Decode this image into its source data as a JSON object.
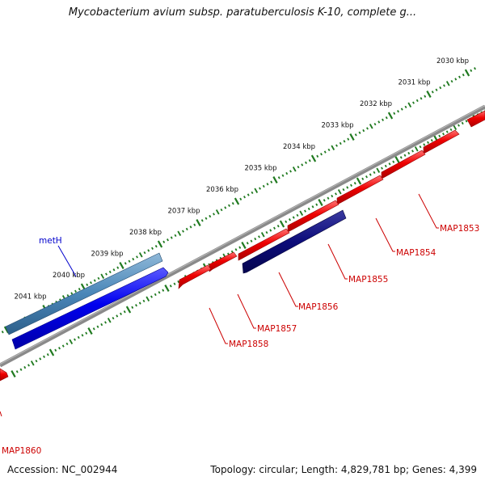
{
  "map_title": "Mycobacterium avium subsp. paratuberculosis K-10, complete g...",
  "accession": "Accession: NC_002944",
  "summary": "Topology: circular; Length: 4,829,781 bp; Genes: 4,399",
  "ruler_labels": [
    {
      "label": "2030 kbp",
      "kbp": 2030
    },
    {
      "label": "2031 kbp",
      "kbp": 2031
    },
    {
      "label": "2032 kbp",
      "kbp": 2032
    },
    {
      "label": "2033 kbp",
      "kbp": 2033
    },
    {
      "label": "2034 kbp",
      "kbp": 2034
    },
    {
      "label": "2035 kbp",
      "kbp": 2035
    },
    {
      "label": "2036 kbp",
      "kbp": 2036
    },
    {
      "label": "2037 kbp",
      "kbp": 2037
    },
    {
      "label": "2038 kbp",
      "kbp": 2038
    },
    {
      "label": "2039 kbp",
      "kbp": 2039
    },
    {
      "label": "2040 kbp",
      "kbp": 2040
    },
    {
      "label": "2041 kbp",
      "kbp": 2041
    }
  ],
  "genes": [
    {
      "name": "MAP1853",
      "color": "#cc0000"
    },
    {
      "name": "MAP1854",
      "color": "#cc0000"
    },
    {
      "name": "MAP1855",
      "color": "#cc0000"
    },
    {
      "name": "MAP1856",
      "color": "#cc0000"
    },
    {
      "name": "MAP1857",
      "color": "#cc0000"
    },
    {
      "name": "MAP1858",
      "color": "#cc0000"
    },
    {
      "name": "MAP1860",
      "color": "#cc0000"
    },
    {
      "name": "metH",
      "color": "#0000cc"
    }
  ],
  "colors": {
    "forward_feature": "#ee0000",
    "reverse_feature": "#0000ee",
    "highlight_feature": "#0c0c7a",
    "metH_track": "#4a86b8",
    "backbone": "#888888",
    "ruler_tick": "#207a20"
  }
}
